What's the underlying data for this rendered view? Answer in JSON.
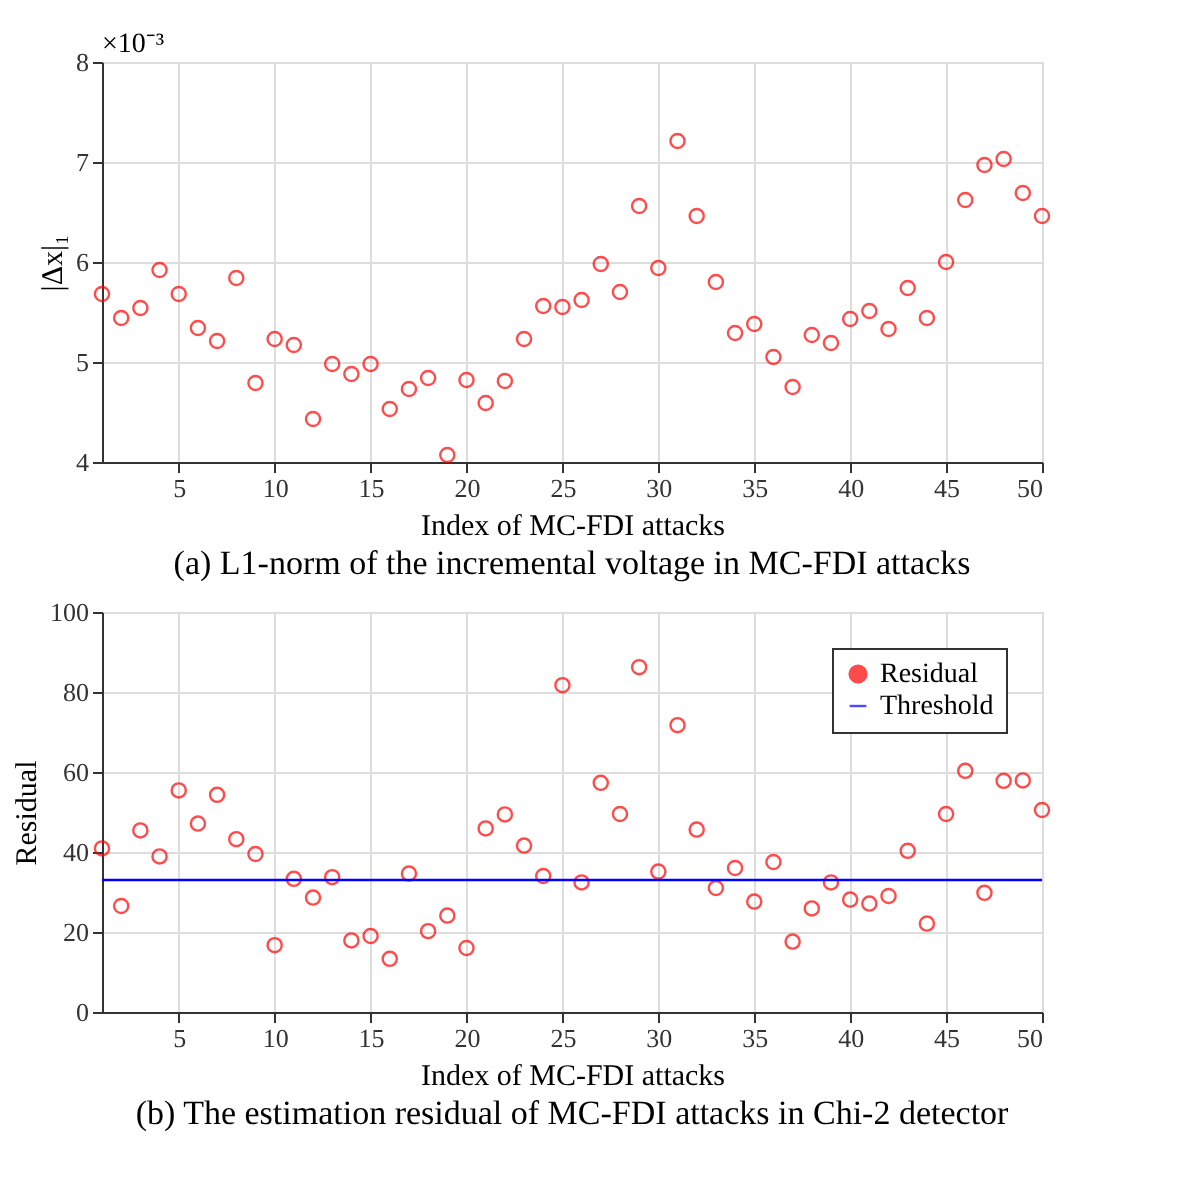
{
  "chart_data": [
    {
      "type": "scatter",
      "title": "(a)    L1-norm of the incremental voltage in MC-FDI attacks",
      "xlabel": "Index of MC-FDI attacks",
      "ylabel": "|Δx|₁",
      "annotations": [
        "×10⁻³"
      ],
      "x": [
        1,
        2,
        3,
        4,
        5,
        6,
        7,
        8,
        9,
        10,
        11,
        12,
        13,
        14,
        15,
        16,
        17,
        18,
        19,
        20,
        21,
        22,
        23,
        24,
        25,
        26,
        27,
        28,
        29,
        30,
        31,
        32,
        33,
        34,
        35,
        36,
        37,
        38,
        39,
        40,
        41,
        42,
        43,
        44,
        45,
        46,
        47,
        48,
        49,
        50
      ],
      "series": [
        {
          "color": "#ff0000",
          "values": [
            5.68,
            5.44,
            5.54,
            5.92,
            5.68,
            5.34,
            5.21,
            5.84,
            4.79,
            5.23,
            5.17,
            4.43,
            4.98,
            4.88,
            4.98,
            4.53,
            4.73,
            4.84,
            4.07,
            4.82,
            4.59,
            4.81,
            5.23,
            5.56,
            5.55,
            5.62,
            5.98,
            5.7,
            6.56,
            5.94,
            7.21,
            6.46,
            5.8,
            5.29,
            5.38,
            5.05,
            4.75,
            5.27,
            5.19,
            5.43,
            5.51,
            5.33,
            5.74,
            5.44,
            6.0,
            6.62,
            6.97,
            7.03,
            6.69,
            6.46
          ]
        }
      ],
      "xlim": [
        1,
        50
      ],
      "xticks": [
        5,
        10,
        15,
        20,
        25,
        30,
        35,
        40,
        45,
        50
      ],
      "ylim": [
        4,
        8
      ],
      "yticks": [
        4,
        5,
        6,
        7,
        8
      ],
      "grid": true,
      "marker": "circle",
      "legend": false
    },
    {
      "type": "scatter",
      "title": "(b)    The estimation residual of MC-FDI attacks in Chi-2 detector",
      "xlabel": "Index of MC-FDI attacks",
      "ylabel": "Residual",
      "x": [
        1,
        2,
        3,
        4,
        5,
        6,
        7,
        8,
        9,
        10,
        11,
        12,
        13,
        14,
        15,
        16,
        17,
        18,
        19,
        20,
        21,
        22,
        23,
        24,
        25,
        26,
        27,
        28,
        29,
        30,
        31,
        32,
        33,
        34,
        35,
        36,
        37,
        38,
        39,
        40,
        41,
        42,
        43,
        44,
        45,
        46,
        47,
        48,
        49,
        50
      ],
      "series": [
        {
          "name": "Residual",
          "color": "#ff0000",
          "values": [
            40.9,
            26.5,
            45.4,
            38.9,
            55.4,
            47.1,
            54.3,
            43.2,
            39.5,
            16.7,
            33.3,
            28.6,
            33.7,
            17.9,
            19.0,
            13.3,
            34.6,
            20.2,
            24.1,
            16.0,
            45.9,
            49.4,
            41.6,
            34.0,
            81.7,
            32.4,
            57.3,
            49.5,
            86.2,
            35.1,
            71.7,
            45.6,
            31.0,
            36.0,
            27.6,
            37.5,
            17.6,
            25.9,
            32.4,
            28.1,
            27.1,
            29.0,
            40.3,
            22.1,
            49.5,
            60.3,
            29.8,
            57.8,
            57.9,
            50.5
          ]
        },
        {
          "name": "Threshold",
          "type": "line",
          "marker": "none",
          "color": "#0000ff",
          "x": [
            1,
            50
          ],
          "values": [
            33.0,
            33.0
          ]
        }
      ],
      "xlim": [
        1,
        50
      ],
      "xticks": [
        5,
        10,
        15,
        20,
        25,
        30,
        35,
        40,
        45,
        50
      ],
      "ylim": [
        0,
        100
      ],
      "yticks": [
        0,
        20,
        40,
        60,
        80,
        100
      ],
      "grid": true,
      "marker": "circle",
      "legend": "top right"
    }
  ]
}
